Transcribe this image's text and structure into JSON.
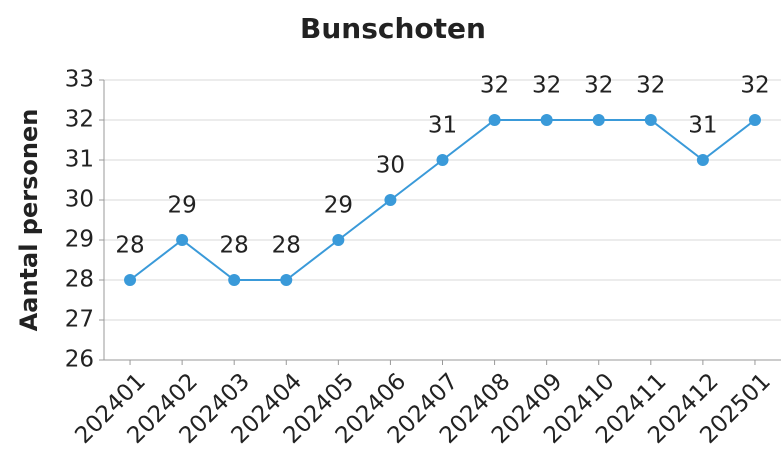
{
  "chart_data": {
    "type": "line",
    "title": "Bunschoten",
    "ylabel": "Aantal personen",
    "categories": [
      "202401",
      "202402",
      "202403",
      "202404",
      "202405",
      "202406",
      "202407",
      "202408",
      "202409",
      "202410",
      "202411",
      "202412",
      "202501"
    ],
    "values": [
      28,
      29,
      28,
      28,
      29,
      30,
      31,
      32,
      32,
      32,
      32,
      31,
      32
    ],
    "color": "#3a9ad9",
    "ylim": [
      26,
      33
    ],
    "yticks": [
      26,
      27,
      28,
      29,
      30,
      31,
      32,
      33
    ],
    "grid": true
  }
}
